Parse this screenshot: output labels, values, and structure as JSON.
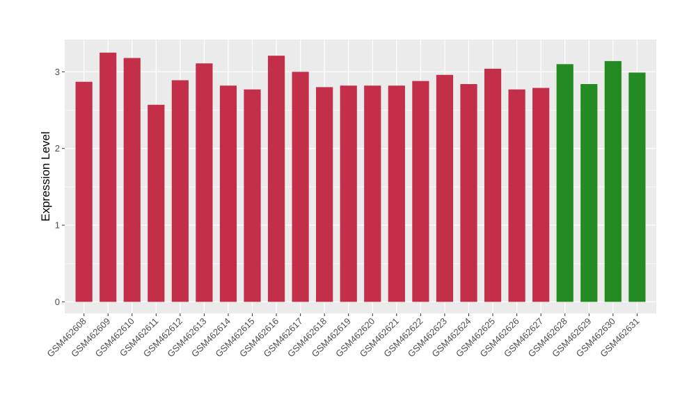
{
  "chart_data": {
    "type": "bar",
    "title": "",
    "xlabel": "",
    "ylabel": "Expression Level",
    "ylim": [
      -0.15,
      3.42
    ],
    "yticks": [
      0,
      1,
      2,
      3
    ],
    "grid": true,
    "legend": "none",
    "categories": [
      "GSM462608",
      "GSM462609",
      "GSM462610",
      "GSM462611",
      "GSM462612",
      "GSM462613",
      "GSM462614",
      "GSM462615",
      "GSM462616",
      "GSM462617",
      "GSM462618",
      "GSM462619",
      "GSM462620",
      "GSM462621",
      "GSM462622",
      "GSM462623",
      "GSM462624",
      "GSM462625",
      "GSM462626",
      "GSM462627",
      "GSM462628",
      "GSM462629",
      "GSM462630",
      "GSM462631"
    ],
    "values": [
      2.87,
      3.25,
      3.18,
      2.57,
      2.89,
      3.11,
      2.82,
      2.77,
      3.21,
      3.0,
      2.8,
      2.82,
      2.82,
      2.82,
      2.88,
      2.96,
      2.84,
      3.04,
      2.77,
      2.79,
      3.1,
      2.84,
      3.14,
      2.99
    ],
    "group": [
      "red",
      "red",
      "red",
      "red",
      "red",
      "red",
      "red",
      "red",
      "red",
      "red",
      "red",
      "red",
      "red",
      "red",
      "red",
      "red",
      "red",
      "red",
      "red",
      "red",
      "green",
      "green",
      "green",
      "green"
    ]
  },
  "colors": {
    "red": "#c32e48",
    "green": "#238b22",
    "panel": "#ebebeb",
    "grid": "#ffffff"
  }
}
